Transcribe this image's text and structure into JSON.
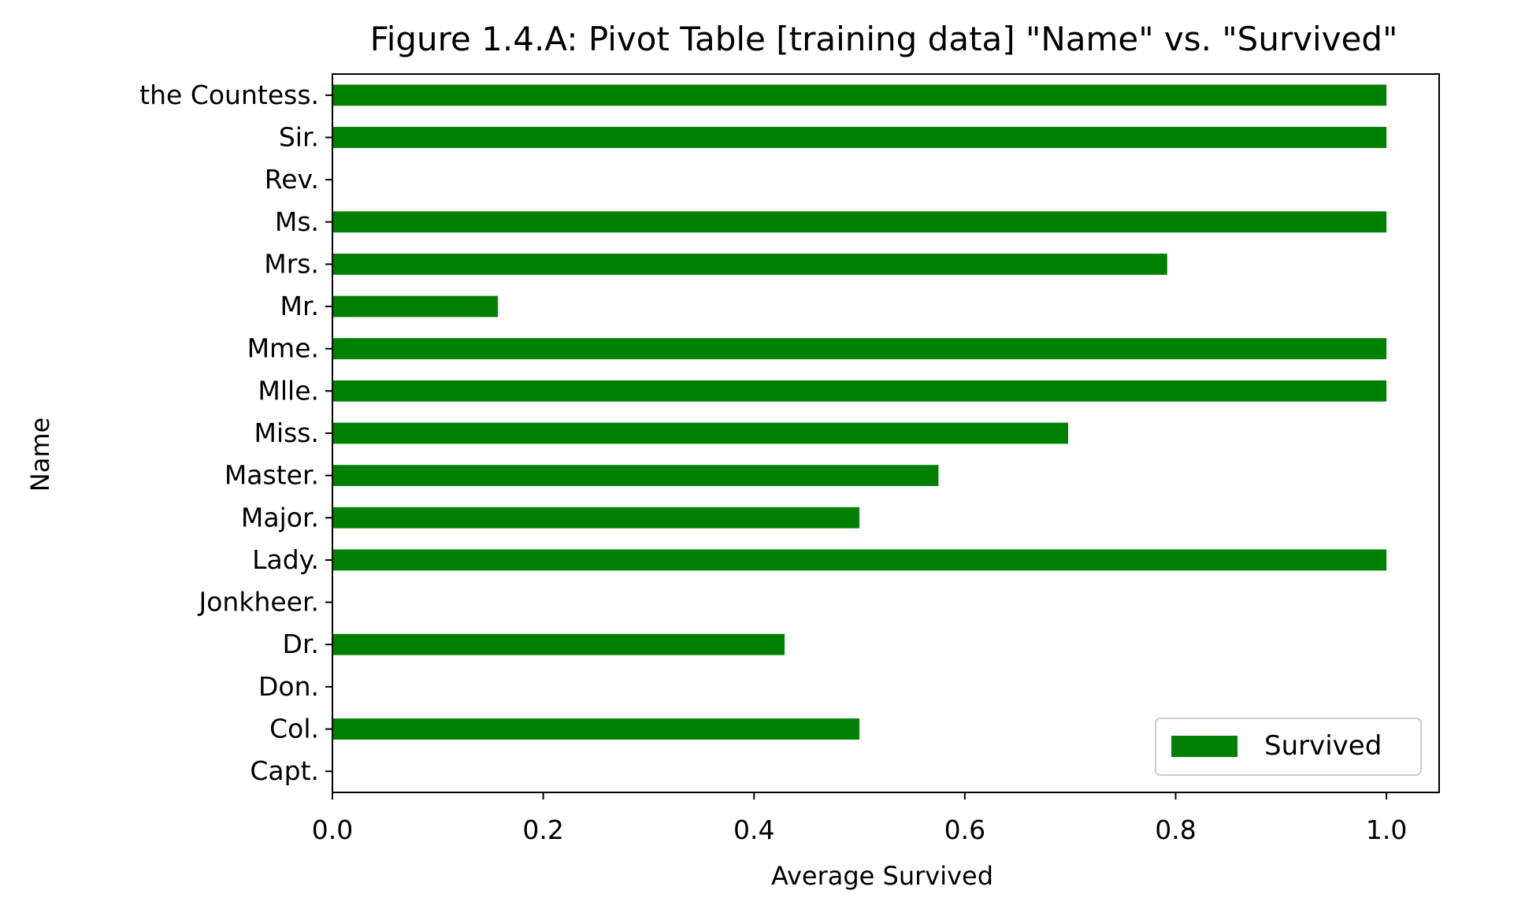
{
  "chart_data": {
    "type": "bar",
    "orientation": "horizontal",
    "title": "Figure 1.4.A:  Pivot Table [training data] \"Name\" vs. \"Survived\"",
    "xlabel": "Average Survived",
    "ylabel": "Name",
    "xlim": [
      0,
      1.05
    ],
    "xticks": [
      "0.0",
      "0.2",
      "0.4",
      "0.6",
      "0.8",
      "1.0"
    ],
    "categories": [
      "Capt.",
      "Col.",
      "Don.",
      "Dr.",
      "Jonkheer.",
      "Lady.",
      "Major.",
      "Master.",
      "Miss.",
      "Mlle.",
      "Mme.",
      "Mr.",
      "Mrs.",
      "Ms.",
      "Rev.",
      "Sir.",
      "the Countess."
    ],
    "series": [
      {
        "name": "Survived",
        "color": "#008000",
        "values": [
          0.0,
          0.5,
          0.0,
          0.429,
          0.0,
          1.0,
          0.5,
          0.575,
          0.698,
          1.0,
          1.0,
          0.157,
          0.792,
          1.0,
          0.0,
          1.0,
          1.0
        ]
      }
    ],
    "legend": {
      "placement": "lower-right"
    },
    "grid": false
  }
}
